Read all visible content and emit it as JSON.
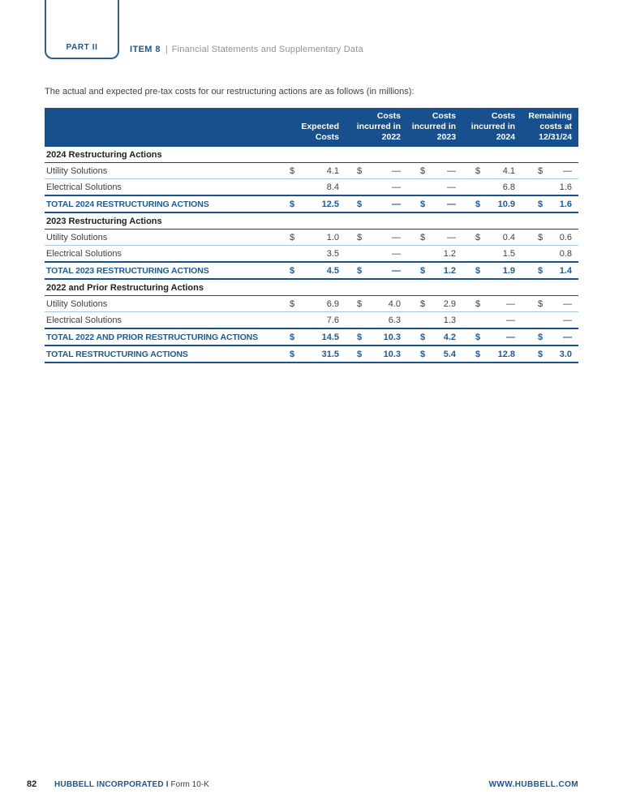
{
  "header": {
    "part_label": "PART II",
    "item_label": "ITEM 8",
    "separator": "|",
    "item_title": "Financial Statements and Supplementary Data"
  },
  "intro_text": "The actual and expected pre-tax costs for our restructuring actions are as follows (in millions):",
  "table": {
    "column_headers": [
      "Expected\nCosts",
      "Costs\nincurred in\n2022",
      "Costs\nincurred in\n2023",
      "Costs\nincurred in\n2024",
      "Remaining\ncosts at\n12/31/24"
    ],
    "currency_symbol": "$",
    "rows": [
      {
        "type": "section",
        "label": "2024 Restructuring Actions"
      },
      {
        "type": "data",
        "label": "Utility Solutions",
        "show_dollar": true,
        "values": [
          "4.1",
          "—",
          "—",
          "4.1",
          "—"
        ]
      },
      {
        "type": "data",
        "label": "Electrical Solutions",
        "show_dollar": false,
        "values": [
          "8.4",
          "—",
          "—",
          "6.8",
          "1.6"
        ]
      },
      {
        "type": "total",
        "label": "TOTAL 2024 RESTRUCTURING ACTIONS",
        "show_dollar": true,
        "values": [
          "12.5",
          "—",
          "—",
          "10.9",
          "1.6"
        ]
      },
      {
        "type": "section",
        "label": "2023 Restructuring Actions"
      },
      {
        "type": "data",
        "label": "Utility Solutions",
        "show_dollar": true,
        "values": [
          "1.0",
          "—",
          "—",
          "0.4",
          "0.6"
        ]
      },
      {
        "type": "data",
        "label": "Electrical Solutions",
        "show_dollar": false,
        "values": [
          "3.5",
          "—",
          "1.2",
          "1.5",
          "0.8"
        ]
      },
      {
        "type": "total",
        "label": "TOTAL 2023 RESTRUCTURING ACTIONS",
        "show_dollar": true,
        "values": [
          "4.5",
          "—",
          "1.2",
          "1.9",
          "1.4"
        ]
      },
      {
        "type": "section",
        "label": "2022 and Prior Restructuring Actions"
      },
      {
        "type": "data",
        "label": "Utility Solutions",
        "show_dollar": true,
        "values": [
          "6.9",
          "4.0",
          "2.9",
          "—",
          "—"
        ]
      },
      {
        "type": "data",
        "label": "Electrical Solutions",
        "show_dollar": false,
        "values": [
          "7.6",
          "6.3",
          "1.3",
          "—",
          "—"
        ]
      },
      {
        "type": "total",
        "label": "TOTAL 2022 AND PRIOR RESTRUCTURING ACTIONS",
        "show_dollar": true,
        "values": [
          "14.5",
          "10.3",
          "4.2",
          "—",
          "—"
        ]
      },
      {
        "type": "grand",
        "label": "TOTAL RESTRUCTURING ACTIONS",
        "show_dollar": true,
        "values": [
          "31.5",
          "10.3",
          "5.4",
          "12.8",
          "3.0"
        ]
      }
    ]
  },
  "footer": {
    "page_number": "82",
    "company": "HUBBELL INCORPORATED",
    "separator": "I",
    "form_name": "Form 10-K",
    "website": "WWW.HUBBELL.COM"
  },
  "colors": {
    "table_header_bg": "#17508d",
    "accent_text_blue": "#1d5a99",
    "brand_blue": "#1d5596",
    "light_rule": "#a9c7e2",
    "dark_rule": "#3f3f3f",
    "subtitle_gray": "#8f9194"
  }
}
